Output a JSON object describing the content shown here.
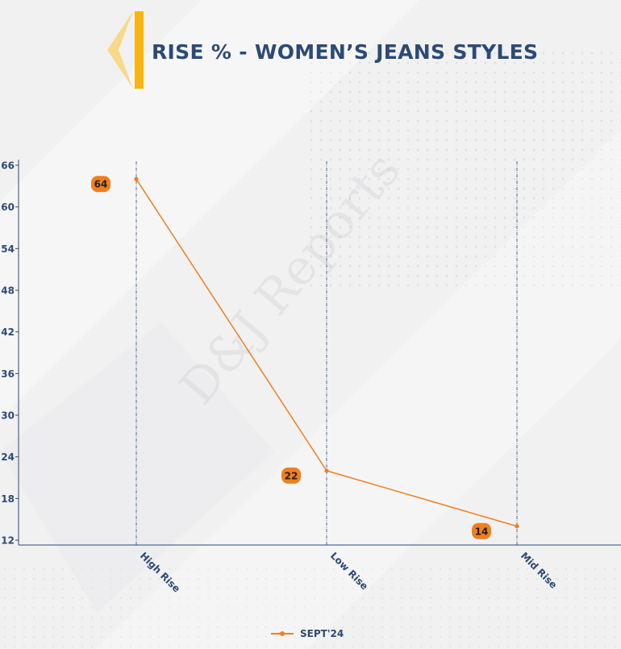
{
  "title": "RISE % - WOMEN’S JEANS STYLES",
  "watermark": "D&J Reports",
  "legend": {
    "label": "SEPT'24",
    "color": "#f07f1f"
  },
  "colors": {
    "title": "#2c4a75",
    "line": "#f07f1f",
    "axis": "#2c4a75",
    "logo_dark": "#fbb30f",
    "logo_light": "#f8d98a"
  },
  "chart_data": {
    "type": "line",
    "categories": [
      "High Rise",
      "Low Rise",
      "Mid Rise"
    ],
    "series": [
      {
        "name": "SEPT'24",
        "values": [
          64,
          22,
          14
        ]
      }
    ],
    "ylim": [
      12,
      66
    ],
    "yticks": [
      12,
      18,
      24,
      30,
      36,
      42,
      48,
      54,
      60,
      66
    ],
    "data_labels": [
      "64",
      "22",
      "14"
    ],
    "grid": "vertical dashed per category",
    "legend_position": "bottom"
  }
}
